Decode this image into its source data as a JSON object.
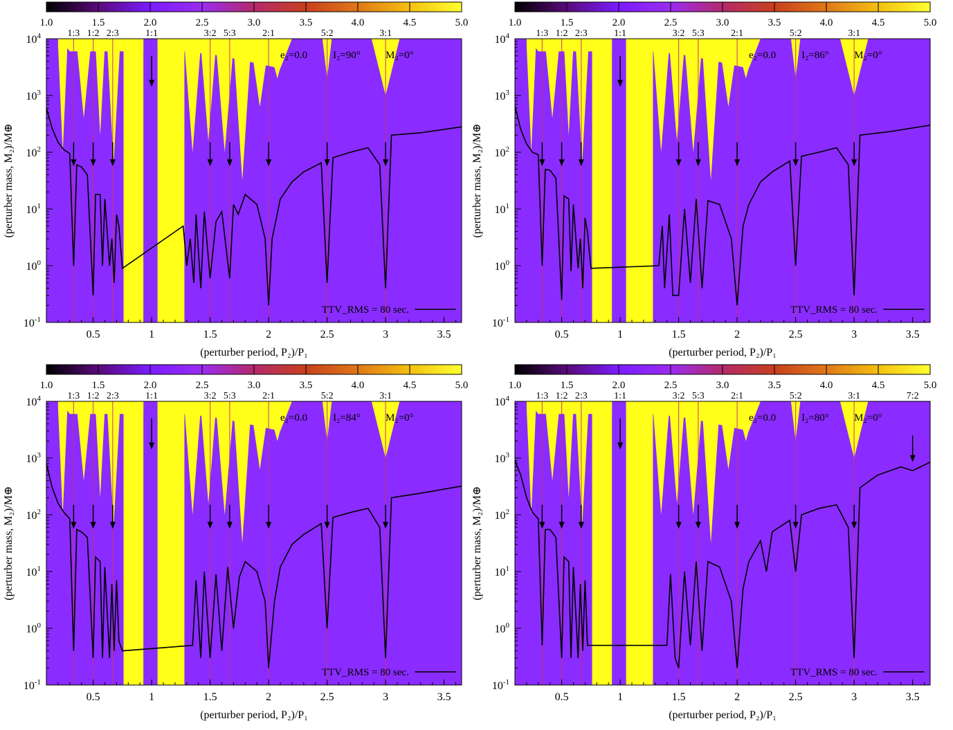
{
  "colorbar": {
    "ticks": [
      "1.0",
      "1.5",
      "2.0",
      "2.5",
      "3.0",
      "3.5",
      "4.0",
      "4.5",
      "5.0"
    ],
    "stops": [
      "#000000",
      "#5a0a7a",
      "#7a1cff",
      "#9b2cf0",
      "#b42a6a",
      "#c8401e",
      "#e07818",
      "#f4c010",
      "#ffff30"
    ]
  },
  "colors": {
    "stable": "#8a2cff",
    "chaotic": "#ffff1a",
    "edge": "#c8307a",
    "curve": "#000000"
  },
  "labels": {
    "xlabel": "(perturber period, P₂)/P₁",
    "ylabel": "(perturber mass, M₂)/M⊕",
    "ttv": "TTV_RMS = 80 sec.",
    "e2": "e₂=0.0",
    "m2": "M₂=0°"
  },
  "xticks": [
    "0.5",
    "1",
    "1.5",
    "2",
    "2.5",
    "3",
    "3.5"
  ],
  "ytick_exponents": [
    "-1",
    "0",
    "1",
    "2",
    "3",
    "4"
  ],
  "chart_data": [
    {
      "type": "heatmap",
      "inclination": "I₂=90°",
      "xlim": [
        0.1,
        3.65
      ],
      "ylim": [
        0.1,
        10000
      ],
      "yscale": "log",
      "resonances": [
        {
          "label": "1:3",
          "x": 0.333
        },
        {
          "label": "1:2",
          "x": 0.5
        },
        {
          "label": "2:3",
          "x": 0.667
        },
        {
          "label": "1:1",
          "x": 1.0
        },
        {
          "label": "3:2",
          "x": 1.5
        },
        {
          "label": "5:3",
          "x": 1.667
        },
        {
          "label": "2:1",
          "x": 2.0
        },
        {
          "label": "5:2",
          "x": 2.5
        },
        {
          "label": "3:1",
          "x": 3.0
        }
      ],
      "ttv_curve": [
        [
          0.1,
          600
        ],
        [
          0.15,
          260
        ],
        [
          0.2,
          150
        ],
        [
          0.25,
          110
        ],
        [
          0.3,
          95
        ],
        [
          0.333,
          1
        ],
        [
          0.36,
          60
        ],
        [
          0.4,
          55
        ],
        [
          0.45,
          40
        ],
        [
          0.5,
          0.3
        ],
        [
          0.52,
          18
        ],
        [
          0.56,
          18
        ],
        [
          0.58,
          1
        ],
        [
          0.6,
          15
        ],
        [
          0.64,
          1
        ],
        [
          0.66,
          3
        ],
        [
          0.68,
          0.5
        ],
        [
          0.7,
          8
        ],
        [
          0.72,
          5
        ],
        [
          0.75,
          0.9
        ],
        [
          1.27,
          5
        ],
        [
          1.3,
          1
        ],
        [
          1.33,
          3
        ],
        [
          1.36,
          0.5
        ],
        [
          1.38,
          8
        ],
        [
          1.42,
          0.4
        ],
        [
          1.45,
          9
        ],
        [
          1.5,
          0.6
        ],
        [
          1.55,
          6
        ],
        [
          1.6,
          9
        ],
        [
          1.667,
          0.6
        ],
        [
          1.7,
          12
        ],
        [
          1.74,
          8
        ],
        [
          1.8,
          18
        ],
        [
          1.9,
          12
        ],
        [
          1.97,
          3
        ],
        [
          2.0,
          0.2
        ],
        [
          2.03,
          3
        ],
        [
          2.1,
          15
        ],
        [
          2.2,
          30
        ],
        [
          2.3,
          45
        ],
        [
          2.45,
          65
        ],
        [
          2.5,
          0.5
        ],
        [
          2.55,
          80
        ],
        [
          2.7,
          100
        ],
        [
          2.85,
          120
        ],
        [
          2.95,
          60
        ],
        [
          3.0,
          0.4
        ],
        [
          3.05,
          200
        ],
        [
          3.3,
          220
        ],
        [
          3.65,
          280
        ]
      ]
    },
    {
      "type": "heatmap",
      "inclination": "I₂=86°",
      "xlim": [
        0.1,
        3.65
      ],
      "ylim": [
        0.1,
        10000
      ],
      "yscale": "log",
      "resonances": [
        {
          "label": "1:3",
          "x": 0.333
        },
        {
          "label": "1:2",
          "x": 0.5
        },
        {
          "label": "2:3",
          "x": 0.667
        },
        {
          "label": "1:1",
          "x": 1.0
        },
        {
          "label": "3:2",
          "x": 1.5
        },
        {
          "label": "5:3",
          "x": 1.667
        },
        {
          "label": "2:1",
          "x": 2.0
        },
        {
          "label": "5:2",
          "x": 2.5
        },
        {
          "label": "3:1",
          "x": 3.0
        }
      ],
      "ttv_curve": [
        [
          0.1,
          650
        ],
        [
          0.15,
          250
        ],
        [
          0.2,
          140
        ],
        [
          0.25,
          100
        ],
        [
          0.3,
          90
        ],
        [
          0.333,
          1
        ],
        [
          0.36,
          50
        ],
        [
          0.4,
          48
        ],
        [
          0.45,
          35
        ],
        [
          0.5,
          0.25
        ],
        [
          0.52,
          17
        ],
        [
          0.56,
          15
        ],
        [
          0.58,
          0.8
        ],
        [
          0.6,
          12
        ],
        [
          0.64,
          0.9
        ],
        [
          0.66,
          3
        ],
        [
          0.68,
          0.4
        ],
        [
          0.7,
          7
        ],
        [
          0.72,
          4
        ],
        [
          0.75,
          0.9
        ],
        [
          1.33,
          1
        ],
        [
          1.36,
          5
        ],
        [
          1.38,
          0.4
        ],
        [
          1.42,
          8
        ],
        [
          1.45,
          0.3
        ],
        [
          1.5,
          0.3
        ],
        [
          1.55,
          10
        ],
        [
          1.6,
          0.5
        ],
        [
          1.65,
          15
        ],
        [
          1.7,
          0.4
        ],
        [
          1.75,
          14
        ],
        [
          1.85,
          12
        ],
        [
          1.95,
          3
        ],
        [
          2.0,
          0.2
        ],
        [
          2.05,
          5
        ],
        [
          2.1,
          12
        ],
        [
          2.2,
          30
        ],
        [
          2.3,
          45
        ],
        [
          2.45,
          70
        ],
        [
          2.5,
          1
        ],
        [
          2.55,
          85
        ],
        [
          2.7,
          100
        ],
        [
          2.85,
          120
        ],
        [
          2.95,
          60
        ],
        [
          3.0,
          0.3
        ],
        [
          3.05,
          200
        ],
        [
          3.3,
          230
        ],
        [
          3.65,
          300
        ]
      ]
    },
    {
      "type": "heatmap",
      "inclination": "I₂=84°",
      "xlim": [
        0.1,
        3.65
      ],
      "ylim": [
        0.1,
        10000
      ],
      "yscale": "log",
      "resonances": [
        {
          "label": "1:3",
          "x": 0.333
        },
        {
          "label": "1:2",
          "x": 0.5
        },
        {
          "label": "2:3",
          "x": 0.667
        },
        {
          "label": "1:1",
          "x": 1.0
        },
        {
          "label": "3:2",
          "x": 1.5
        },
        {
          "label": "5:3",
          "x": 1.667
        },
        {
          "label": "2:1",
          "x": 2.0
        },
        {
          "label": "5:2",
          "x": 2.5
        },
        {
          "label": "3:1",
          "x": 3.0
        }
      ],
      "ttv_curve": [
        [
          0.1,
          800
        ],
        [
          0.15,
          300
        ],
        [
          0.2,
          160
        ],
        [
          0.25,
          110
        ],
        [
          0.3,
          85
        ],
        [
          0.333,
          0.4
        ],
        [
          0.36,
          55
        ],
        [
          0.4,
          50
        ],
        [
          0.45,
          40
        ],
        [
          0.5,
          0.3
        ],
        [
          0.52,
          18
        ],
        [
          0.56,
          15
        ],
        [
          0.58,
          0.3
        ],
        [
          0.6,
          12
        ],
        [
          0.64,
          0.3
        ],
        [
          0.66,
          6
        ],
        [
          0.68,
          0.4
        ],
        [
          0.7,
          7
        ],
        [
          0.72,
          0.6
        ],
        [
          0.75,
          0.4
        ],
        [
          1.35,
          0.5
        ],
        [
          1.38,
          7
        ],
        [
          1.42,
          0.3
        ],
        [
          1.45,
          10
        ],
        [
          1.5,
          0.3
        ],
        [
          1.55,
          9
        ],
        [
          1.6,
          0.4
        ],
        [
          1.65,
          12
        ],
        [
          1.7,
          1
        ],
        [
          1.75,
          8
        ],
        [
          1.8,
          15
        ],
        [
          1.9,
          10
        ],
        [
          1.97,
          3
        ],
        [
          2.0,
          0.2
        ],
        [
          2.05,
          3
        ],
        [
          2.1,
          12
        ],
        [
          2.2,
          30
        ],
        [
          2.3,
          45
        ],
        [
          2.45,
          70
        ],
        [
          2.5,
          1
        ],
        [
          2.55,
          90
        ],
        [
          2.7,
          110
        ],
        [
          2.85,
          130
        ],
        [
          2.95,
          60
        ],
        [
          3.0,
          0.3
        ],
        [
          3.05,
          200
        ],
        [
          3.3,
          240
        ],
        [
          3.65,
          320
        ]
      ]
    },
    {
      "type": "heatmap",
      "inclination": "I₂=80°",
      "xlim": [
        0.1,
        3.65
      ],
      "ylim": [
        0.1,
        10000
      ],
      "yscale": "log",
      "resonances": [
        {
          "label": "1:3",
          "x": 0.333
        },
        {
          "label": "1:2",
          "x": 0.5
        },
        {
          "label": "2:3",
          "x": 0.667
        },
        {
          "label": "1:1",
          "x": 1.0
        },
        {
          "label": "3:2",
          "x": 1.5
        },
        {
          "label": "5:3",
          "x": 1.667
        },
        {
          "label": "2:1",
          "x": 2.0
        },
        {
          "label": "5:2",
          "x": 2.5
        },
        {
          "label": "3:1",
          "x": 3.0
        },
        {
          "label": "7:2",
          "x": 3.5
        }
      ],
      "ttv_curve": [
        [
          0.1,
          900
        ],
        [
          0.15,
          500
        ],
        [
          0.2,
          200
        ],
        [
          0.25,
          110
        ],
        [
          0.3,
          85
        ],
        [
          0.333,
          0.5
        ],
        [
          0.36,
          55
        ],
        [
          0.4,
          55
        ],
        [
          0.45,
          40
        ],
        [
          0.5,
          0.3
        ],
        [
          0.52,
          18
        ],
        [
          0.56,
          15
        ],
        [
          0.58,
          0.3
        ],
        [
          0.6,
          12
        ],
        [
          0.64,
          0.3
        ],
        [
          0.66,
          6
        ],
        [
          0.68,
          0.4
        ],
        [
          0.7,
          7
        ],
        [
          0.72,
          0.5
        ],
        [
          0.75,
          0.5
        ],
        [
          1.4,
          0.5
        ],
        [
          1.43,
          9
        ],
        [
          1.47,
          0.3
        ],
        [
          1.5,
          0.2
        ],
        [
          1.55,
          10
        ],
        [
          1.6,
          0.5
        ],
        [
          1.65,
          15
        ],
        [
          1.7,
          0.4
        ],
        [
          1.75,
          15
        ],
        [
          1.85,
          12
        ],
        [
          1.95,
          3
        ],
        [
          2.0,
          0.2
        ],
        [
          2.05,
          5
        ],
        [
          2.1,
          15
        ],
        [
          2.2,
          35
        ],
        [
          2.25,
          10
        ],
        [
          2.3,
          50
        ],
        [
          2.45,
          80
        ],
        [
          2.5,
          10
        ],
        [
          2.55,
          100
        ],
        [
          2.7,
          130
        ],
        [
          2.85,
          150
        ],
        [
          2.95,
          60
        ],
        [
          3.0,
          0.3
        ],
        [
          3.05,
          300
        ],
        [
          3.2,
          500
        ],
        [
          3.4,
          700
        ],
        [
          3.5,
          600
        ],
        [
          3.65,
          850
        ]
      ]
    }
  ]
}
